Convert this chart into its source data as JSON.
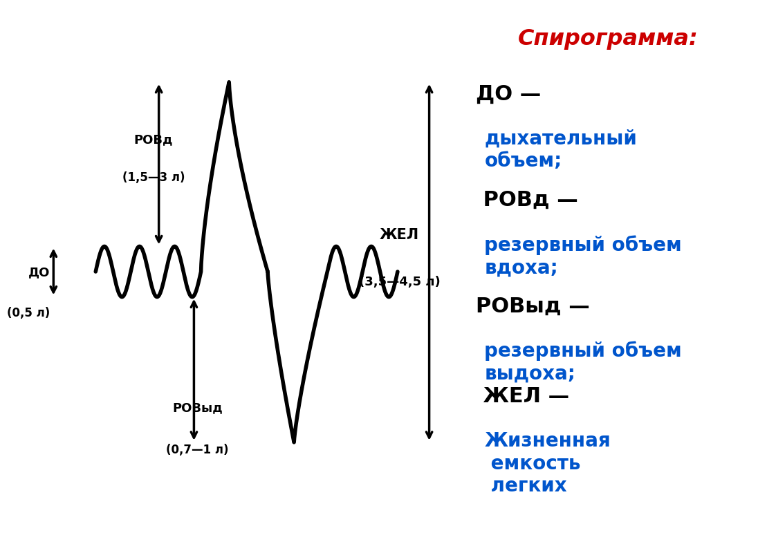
{
  "bg_color": "#ffffff",
  "title": "Спирограмма:",
  "title_color": "#cc0000",
  "curve_color": "#000000",
  "arrow_color": "#000000",
  "label_rovd_line1": "РОВд",
  "label_rovd_line2": "(1,5—3 л)",
  "label_rovyd_line1": "РОВыд",
  "label_rovyd_line2": "(0,7—1 л)",
  "label_do_line1": "ДО",
  "label_do_line2": "(0,5 л)",
  "label_jel_line1": "ЖЕЛ",
  "label_jel_line2": "(3,5—4,5 л)",
  "legend_title": "Спирограмма:",
  "legend_entries": [
    {
      "black": "ДО —",
      "blue": "дыхательный\nобъем;"
    },
    {
      "black": " РОВд —",
      "blue": "резервный объем\nвдоха;"
    },
    {
      "black": "РОВыд —",
      "blue": "резервный объем\nвыдоха;"
    },
    {
      "black": " ЖЕЛ —",
      "blue": "Жизненная\n емкость\n легких"
    }
  ]
}
